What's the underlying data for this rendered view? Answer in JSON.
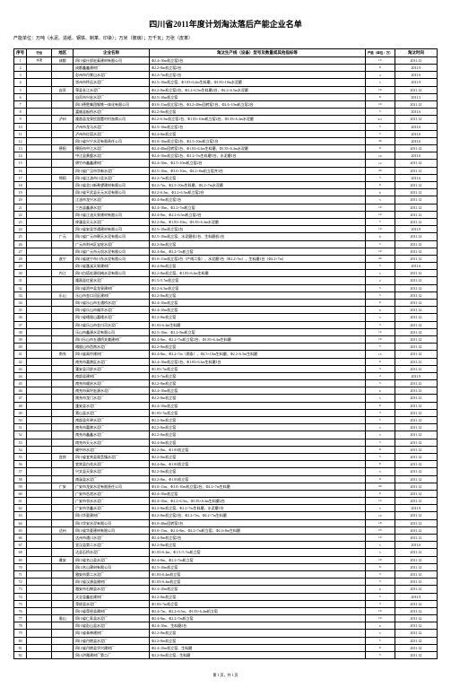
{
  "title": "四川省2011年度计划淘汰落后产能企业名单",
  "subtitle": "产能单位：万吨（水泥、造纸、钢铁、制革、印染）；万米（玻璃）；万千瓦；万张（皮革）",
  "columns": {
    "seq": "序号",
    "industry": "行业",
    "area": "地区",
    "company": "企业名称",
    "product": "淘汰生产线（设备）型号及数量或其他指标等",
    "capacity": "产能（单位：万）",
    "time": "淘汰时间"
  },
  "rows": [
    {
      "seq": "1",
      "ind": "水泥",
      "area": "成都",
      "co": "四川省什邡宏泰建材有限公司",
      "pr": "Φ2.4×10m机立窑3台",
      "cap": "15",
      "time": "2011.12"
    },
    {
      "seq": "2",
      "ind": "",
      "area": "",
      "co": "成都鑫鑫建材厂",
      "pr": "Φ2.2×8m机立窑2台",
      "cap": "8",
      "time": "2011.9"
    },
    {
      "seq": "3",
      "ind": "",
      "area": "",
      "co": "彭州市丹景山水泥厂",
      "pr": "Φ2.2×7m机立窑1台",
      "cap": "4",
      "time": "2011.6"
    },
    {
      "seq": "4",
      "ind": "",
      "area": "",
      "co": "崇州市怀远水泥厂",
      "pr": "Φ2.5×10m机立窑、Φ1.83×6.4m生料磨、Φ1.83×10m水泥磨",
      "cap": "5",
      "time": "2011.9"
    },
    {
      "seq": "5",
      "ind": "",
      "area": "自贡",
      "co": "荣县长江水泥厂",
      "pr": "Φ2.2×8m机立窑2台、Φ2.2×6.5m生料磨2台、Φ2.2×6.5m水泥磨",
      "cap": "10",
      "time": "2011.12"
    },
    {
      "seq": "6",
      "ind": "",
      "area": "",
      "co": "自贡市兴宏水泥厂",
      "pr": "Φ2.5×10m机立窑",
      "cap": "8",
      "time": "2011.5"
    },
    {
      "seq": "7",
      "ind": "",
      "area": "",
      "co": "四川德胜集团钢铁一体化有限公司",
      "pr": "Φ3.0×11m机立窑1台、Φ3.2×48m回转窑1台、Φ2.4×10m机立窑2台",
      "cap": "10",
      "time": "2011.12"
    },
    {
      "seq": "8",
      "ind": "",
      "area": "",
      "co": "富顺县板桥水泥厂",
      "pr": "Φ2.2×8m机立窑",
      "cap": "5",
      "time": "2011.6"
    },
    {
      "seq": "9",
      "ind": "",
      "area": "泸州",
      "co": "隆昌县龙泉民国董村村浙商公司",
      "pr": "Φ2.2×6.5m机立窑1台、Φ1.83×10m机立窑2台、Φ1.83×6.4m水泥磨",
      "cap": "6.5",
      "time": "2011.12"
    },
    {
      "seq": "10",
      "ind": "",
      "area": "",
      "co": "泸州市龙马水泥厂",
      "pr": "Φ2.5×10m机立窑1台",
      "cap": "5",
      "time": "2011.6"
    },
    {
      "seq": "11",
      "ind": "",
      "area": "",
      "co": "泸州市红塔水泥厂",
      "pr": "Φ2.4×8m机立窑",
      "cap": "5",
      "time": "2011.6"
    },
    {
      "seq": "12",
      "ind": "",
      "area": "",
      "co": "四川省兴宁水泥有限责任公司",
      "pr": "Φ3.0×10m机立窑2台、Φ2.5×10m机立窑1台",
      "cap": "30",
      "time": "2011.6"
    },
    {
      "seq": "13",
      "ind": "",
      "area": "德阳",
      "co": "德阳市中江水泥厂",
      "pr": "Φ2.4×40m回转窑1台、Φ1.83×6.4m生料磨、Φ1.83×6.4m水泥磨",
      "cap": "8",
      "time": "2011.12"
    },
    {
      "seq": "14",
      "ind": "",
      "area": "",
      "co": "中江县黄鹿水泥厂",
      "pr": "Φ2.4×10m机立窑2台、Φ2.2×7m生料磨1台、水泥磨1台",
      "cap": "10",
      "time": "2011.6"
    },
    {
      "seq": "15",
      "ind": "",
      "area": "",
      "co": "绵竹市鑫鑫建材厂",
      "pr": "Φ2.4×10m、Φ2.5×10m机立窑2台",
      "cap": "12",
      "time": "2011.12"
    },
    {
      "seq": "16",
      "ind": "",
      "area": "",
      "co": "四川省广汉市华新水泥厂",
      "pr": "Φ2.5×10m、Φ3.0×10m、Φ2.2×8m机立窑共3台",
      "cap": "20",
      "time": "2011.12"
    },
    {
      "seq": "17",
      "ind": "",
      "area": "绵阳",
      "co": "四川省江油市川北水泥厂",
      "pr": "Φ2.2×7m机立窑",
      "cap": "5",
      "time": "2011.6"
    },
    {
      "seq": "18",
      "ind": "",
      "area": "",
      "co": "四川省北川新希望建材有限公司",
      "pr": "Φ2.2×7m、Φ2.5×10m生料磨、Φ2.2×7m水泥磨",
      "cap": "8",
      "time": "2011.12"
    },
    {
      "seq": "19",
      "ind": "",
      "area": "",
      "co": "四川省平武县天元水泥有限公司",
      "pr": "Φ2.2×6.5m、Φ2.2×6.5m机立窑2台",
      "cap": "8",
      "time": "2011.12"
    },
    {
      "seq": "20",
      "ind": "",
      "area": "",
      "co": "江油市龙兴水泥厂",
      "pr": "Φ2.4×8m机立窑1台",
      "cap": "5",
      "time": "2011.12"
    },
    {
      "seq": "21",
      "ind": "",
      "area": "",
      "co": "三台县鑫源水泥厂",
      "pr": "Φ2.4×10m、Φ2.2×7m机立窑",
      "cap": "10",
      "time": "2011.12"
    },
    {
      "seq": "22",
      "ind": "",
      "area": "",
      "co": "四川省江油天泉建材有限公司",
      "pr": "Φ2.4×8m、Φ2.2×6.5m机立窑2台",
      "cap": "10",
      "time": "2011.12"
    },
    {
      "seq": "23",
      "ind": "",
      "area": "",
      "co": "梓潼县天元水泥厂",
      "pr": "Φ2.2×8m、Φ1.83×10m、Φ1.83×6.4m水泥磨",
      "cap": "5",
      "time": "2011.12"
    },
    {
      "seq": "24",
      "ind": "",
      "area": "",
      "co": "四川省安县华通建材有限公司",
      "pr": "Φ2.5×10m机立窑2台",
      "cap": "10",
      "time": "2011.9"
    },
    {
      "seq": "25",
      "ind": "",
      "area": "广元",
      "co": "四川省广元市朝天水泥有限公司",
      "pr": "Φ2.5×10m机立窑、水泥磨机1台、生料磨机1台",
      "cap": "8",
      "time": "2011.12"
    },
    {
      "seq": "26",
      "ind": "",
      "area": "",
      "co": "广元市利州区宝轮水泥厂",
      "pr": "Φ2.2×8m机立窑",
      "cap": "5",
      "time": "2011.12"
    },
    {
      "seq": "27",
      "ind": "",
      "area": "",
      "co": "四川省广元市元坝水泥有限公司",
      "pr": "Φ2.4×8m、Φ2.2×7m机立窑",
      "cap": "10",
      "time": "2011.12"
    },
    {
      "seq": "28",
      "ind": "",
      "area": "遂宁",
      "co": "四川省遂宁市川东水泥有限公司",
      "pr": "Φ3.0×11m机立窑2台（产线二条）、水泥磨1台（Φ2.2×7m）、生料磨1台（Φ2.2×7m）",
      "cap": "20",
      "time": "2011.12"
    },
    {
      "seq": "29",
      "ind": "",
      "area": "",
      "co": "四川省蓬溪天泉建材厂",
      "pr": "Φ2.4×8m机立窑",
      "cap": "5",
      "time": "2011.6"
    },
    {
      "seq": "30",
      "ind": "",
      "area": "内江",
      "co": "四川白塔宏源机械水泥有限公司",
      "pr": "Φ2.2×8m机立窑、Φ1.83×6.4m生料磨",
      "cap": "5",
      "time": "2011.12"
    },
    {
      "seq": "31",
      "ind": "",
      "area": "",
      "co": "隆昌县红星水泥厂",
      "pr": "Φ1.5×5.7m机立窑",
      "cap": "2",
      "time": "2011.12"
    },
    {
      "seq": "32",
      "ind": "",
      "area": "",
      "co": "四川省资中县龙泉建材厂",
      "pr": "Φ2.2×6.5m机立窑",
      "cap": "5",
      "time": "2011.12"
    },
    {
      "seq": "33",
      "ind": "",
      "area": "乐山",
      "co": "乐山市金口河区建材厂",
      "pr": "Φ2.2×8m机立窑",
      "cap": "5",
      "time": "2011.12"
    },
    {
      "seq": "34",
      "ind": "",
      "area": "",
      "co": "四川省乐山市五通桥水泥厂",
      "pr": "Φ2.4×10m机立窑",
      "cap": "6",
      "time": "2011.12"
    },
    {
      "seq": "35",
      "ind": "",
      "area": "",
      "co": "四川省乐山市福华水泥厂",
      "pr": "Φ2.4×10m机立窑",
      "cap": "6",
      "time": "2011.12"
    },
    {
      "seq": "36",
      "ind": "",
      "area": "",
      "co": "四川省峨眉山嘉峨水泥厂",
      "pr": "Φ2.2×8m机立窑",
      "cap": "5",
      "time": "2011.12"
    },
    {
      "seq": "37",
      "ind": "",
      "area": "",
      "co": "四川省乐山市金口河水泥厂",
      "pr": "Φ1.83×6.4m生料磨",
      "cap": "3",
      "time": "2011.12"
    },
    {
      "seq": "38",
      "ind": "",
      "area": "",
      "co": "乐山市鑫源水泥有限公司",
      "pr": "Φ2.5×10m、Φ2.2×8m机立窑",
      "cap": "12",
      "time": "2011.12"
    },
    {
      "seq": "39",
      "ind": "",
      "area": "",
      "co": "四川乐山市五通桥关美建材厂",
      "pr": "Φ2.4×8m、Φ2.2×7m机立窑2台、Φ1.83×6.4m生料磨",
      "cap": "10",
      "time": "2011.12"
    },
    {
      "seq": "40",
      "ind": "",
      "area": "",
      "co": "峨眉山市西南水泥厂",
      "pr": "Φ2.2×8m机立窑",
      "cap": "5",
      "time": "2011.12"
    },
    {
      "seq": "41",
      "ind": "",
      "area": "南充",
      "co": "四川省高坪建材厂",
      "pr": "Φ2.4×8m、Φ2.2×7m（两条）、Φ2.5×10m生料磨、Φ2.2×6.5m生料磨",
      "cap": "15",
      "time": "2011.12"
    },
    {
      "seq": "42",
      "ind": "",
      "area": "",
      "co": "南充市嘉陵区水泥厂",
      "pr": "Φ2.4×10m机立窑1台、Φ1.83×6.4m生料磨1台",
      "cap": "6",
      "time": "2011.12"
    },
    {
      "seq": "43",
      "ind": "",
      "area": "",
      "co": "蓬安县河舒水泥厂",
      "pr": "Φ1.83×7m机立窑",
      "cap": "3",
      "time": "2011.12"
    },
    {
      "seq": "44",
      "ind": "",
      "area": "",
      "co": "南部县建材厂",
      "pr": "Φ2.3×7m机立窑",
      "cap": "4",
      "time": "2011.9"
    },
    {
      "seq": "45",
      "ind": "",
      "area": "",
      "co": "南充市顺庆水泥厂",
      "pr": "Φ2.2×8m机立窑",
      "cap": "5",
      "time": "2011.12"
    },
    {
      "seq": "46",
      "ind": "",
      "area": "",
      "co": "南充市高坪宏源水泥厂",
      "pr": "Φ2.4×10m机立窑",
      "cap": "6",
      "time": "2011.12"
    },
    {
      "seq": "47",
      "ind": "",
      "area": "",
      "co": "南充市龙门水泥厂",
      "pr": "Φ2.2×8m机立窑",
      "cap": "5",
      "time": "2011.12"
    },
    {
      "seq": "48",
      "ind": "",
      "area": "",
      "co": "蓬安县水泥厂",
      "pr": "Φ2.4×10m机立窑",
      "cap": "6",
      "time": "2011.12"
    },
    {
      "seq": "49",
      "ind": "",
      "area": "",
      "co": "营山县水泥厂",
      "pr": "Φ1.83×7m机立窑",
      "cap": "3",
      "time": "2011.12"
    },
    {
      "seq": "50",
      "ind": "",
      "area": "",
      "co": "南部县升钟水泥厂",
      "pr": "Φ2.2×8m机立窑",
      "cap": "5",
      "time": "2011.12"
    },
    {
      "seq": "51",
      "ind": "",
      "area": "",
      "co": "南充市嘉陵水泥厂",
      "pr": "Φ2.2×8m机立窑",
      "cap": "5",
      "time": "2011.12"
    },
    {
      "seq": "52",
      "ind": "",
      "area": "",
      "co": "南充市鑫鑫水泥厂",
      "pr": "Φ2.2×8m机立窑",
      "cap": "5",
      "time": "2011.12"
    },
    {
      "seq": "53",
      "ind": "",
      "area": "",
      "co": "南充市天元水泥厂",
      "pr": "Φ2.4×8m机立窑",
      "cap": "5",
      "time": "2011.12"
    },
    {
      "seq": "54",
      "ind": "",
      "area": "",
      "co": "阆中市水泥厂",
      "pr": "Φ2.2×8m、Φ1.83机立窑",
      "cap": "8",
      "time": "2011.12"
    },
    {
      "seq": "55",
      "ind": "",
      "area": "宜宾",
      "co": "四川省宜宾县观音镇水泥厂",
      "pr": "Φ2.2×8m机立窑",
      "cap": "5",
      "time": "2011.12"
    },
    {
      "seq": "56",
      "ind": "",
      "area": "",
      "co": "宜宾县白花水泥厂",
      "pr": "Φ2.4×8m、Φ1.83机立窑",
      "cap": "8",
      "time": "2011.12"
    },
    {
      "seq": "57",
      "ind": "",
      "area": "",
      "co": "兴文县天泉水泥厂",
      "pr": "Φ2.2×8m机立窑",
      "cap": "5",
      "time": "2011.12"
    },
    {
      "seq": "58",
      "ind": "",
      "area": "",
      "co": "南溪县水泥厂",
      "pr": "Φ2.2×8m、Φ1.83机立窑",
      "cap": "8",
      "time": "2011.12"
    },
    {
      "seq": "59",
      "ind": "",
      "area": "广安",
      "co": "广安市龙安水泥有限责任公司",
      "pr": "Φ3.0×11m、Φ3.0×10m机立窑2台、Φ2.2×7m生料磨",
      "cap": "20",
      "time": "2011.12"
    },
    {
      "seq": "60",
      "ind": "",
      "area": "",
      "co": "广安市岳池水泥厂",
      "pr": "Φ2.4×10m机立窑",
      "cap": "6",
      "time": "2011.12"
    },
    {
      "seq": "61",
      "ind": "",
      "area": "",
      "co": "广安市邻水水泥厂",
      "pr": "Φ2.4×10m、Φ2.2×6.5m、Φ1.83×6.4m生料磨2台",
      "cap": "12",
      "time": "2011.12"
    },
    {
      "seq": "62",
      "ind": "",
      "area": "",
      "co": "广安市华鑫水泥厂",
      "pr": "Φ2.2×8m机立窑、Φ2.2×7m生料磨、水泥磨1台",
      "cap": "5",
      "time": "2011.9"
    },
    {
      "seq": "63",
      "ind": "",
      "area": "",
      "co": "四川华夏建材厂",
      "pr": "Φ2.2×8m机立窑2台、Φ2.2×7m、Φ2.2×7m生料磨",
      "cap": "10",
      "time": "2011.12"
    },
    {
      "seq": "64",
      "ind": "",
      "area": "",
      "co": "四川华安水泥有限公司",
      "pr": "Φ3.0×48m回转窑1台",
      "cap": "18",
      "time": "2011.12"
    },
    {
      "seq": "65",
      "ind": "",
      "area": "达州",
      "co": "四川省华夏建材有限公司",
      "pr": "Φ3.0×11m、Φ2.4×8m、Φ2.2×7m机立窑、Φ2.4×8m生料磨",
      "cap": "25",
      "time": "2011.12"
    },
    {
      "seq": "66",
      "ind": "",
      "area": "",
      "co": "达州市通川水泥厂",
      "pr": "Φ2.4×8m机立窑2台",
      "cap": "10",
      "time": "2011.12"
    },
    {
      "seq": "67",
      "ind": "",
      "area": "",
      "co": "宣汉县第二水泥厂",
      "pr": "Φ2.2×8m机立窑",
      "cap": "5",
      "time": "2011.6"
    },
    {
      "seq": "68",
      "ind": "",
      "area": "",
      "co": "达县石桥水泥厂",
      "pr": "Φ1.83×6.4m、Φ1.5×5.7m机立窑",
      "cap": "5",
      "time": "2011.12"
    },
    {
      "seq": "69",
      "ind": "",
      "area": "雅安",
      "co": "四川省名山县水泥厂",
      "pr": "Φ2.4×8m、Φ2.2×7m机立窑",
      "cap": "10",
      "time": "2011.12"
    },
    {
      "seq": "70",
      "ind": "",
      "area": "",
      "co": "四川名山建材有限公司",
      "pr": "Φ2.5×10m机立窑",
      "cap": "8",
      "time": "2011.12"
    },
    {
      "seq": "71",
      "ind": "",
      "area": "",
      "co": "雅安市第二水泥厂",
      "pr": "Φ1.83×6.4m机立窑",
      "cap": "3",
      "time": "2011.12"
    },
    {
      "seq": "72",
      "ind": "",
      "area": "",
      "co": "四川省汉源县建材厂",
      "pr": "Φ1.83×6.4m机立窑",
      "cap": "3",
      "time": "2011.12"
    },
    {
      "seq": "73",
      "ind": "",
      "area": "",
      "co": "雅安市石棉县水泥厂",
      "pr": "Φ2.4×10m机立窑",
      "cap": "6",
      "time": "2011.12"
    },
    {
      "seq": "74",
      "ind": "",
      "area": "",
      "co": "天全县鑫宏建材厂",
      "pr": "Φ2.2×8m机立窑",
      "cap": "5",
      "time": "2011.9"
    },
    {
      "seq": "75",
      "ind": "",
      "area": "",
      "co": "荥经县水泥厂",
      "pr": "Φ1.83×7m机立窑",
      "cap": "3",
      "time": "2011.12"
    },
    {
      "seq": "76",
      "ind": "",
      "area": "",
      "co": "四川省荥经县建材厂",
      "pr": "Φ2.4×7m、Φ2.2×6.5m、Φ1.83×6.4m机立窑",
      "cap": "10",
      "time": "2011.12"
    },
    {
      "seq": "77",
      "ind": "",
      "area": "眉山",
      "co": "四川省仁寿县水泥厂",
      "pr": "Φ2.4×8m、Φ2.2×7m机立窑",
      "cap": "10",
      "time": "2011.12"
    },
    {
      "seq": "78",
      "ind": "",
      "area": "",
      "co": "四川省彭山县水泥厂",
      "pr": "Φ2.4×10m、生料磨2台",
      "cap": "6",
      "time": "2011.12"
    },
    {
      "seq": "79",
      "ind": "",
      "area": "",
      "co": "四川省青神建材厂",
      "pr": "Φ2.2×8m机立窑",
      "cap": "5",
      "time": "2011.12"
    },
    {
      "seq": "80",
      "ind": "",
      "area": "",
      "co": "四川省丹棱县水泥厂",
      "pr": "Φ2.2×8m机立窑",
      "cap": "5",
      "time": "2011.12"
    },
    {
      "seq": "81",
      "ind": "",
      "area": "",
      "co": "四川省丹棱县华兴建材厂",
      "pr": "Φ2.4×10m机立窑、生料磨",
      "cap": "6",
      "time": "2011.12"
    },
    {
      "seq": "82",
      "ind": "",
      "area": "",
      "co": "四川洪雅建材厂第二厂",
      "pr": "Φ2.2×8m机立窑、生料磨",
      "cap": "5",
      "time": "2011.12"
    }
  ],
  "footer": "第 1 页，共 1 页"
}
